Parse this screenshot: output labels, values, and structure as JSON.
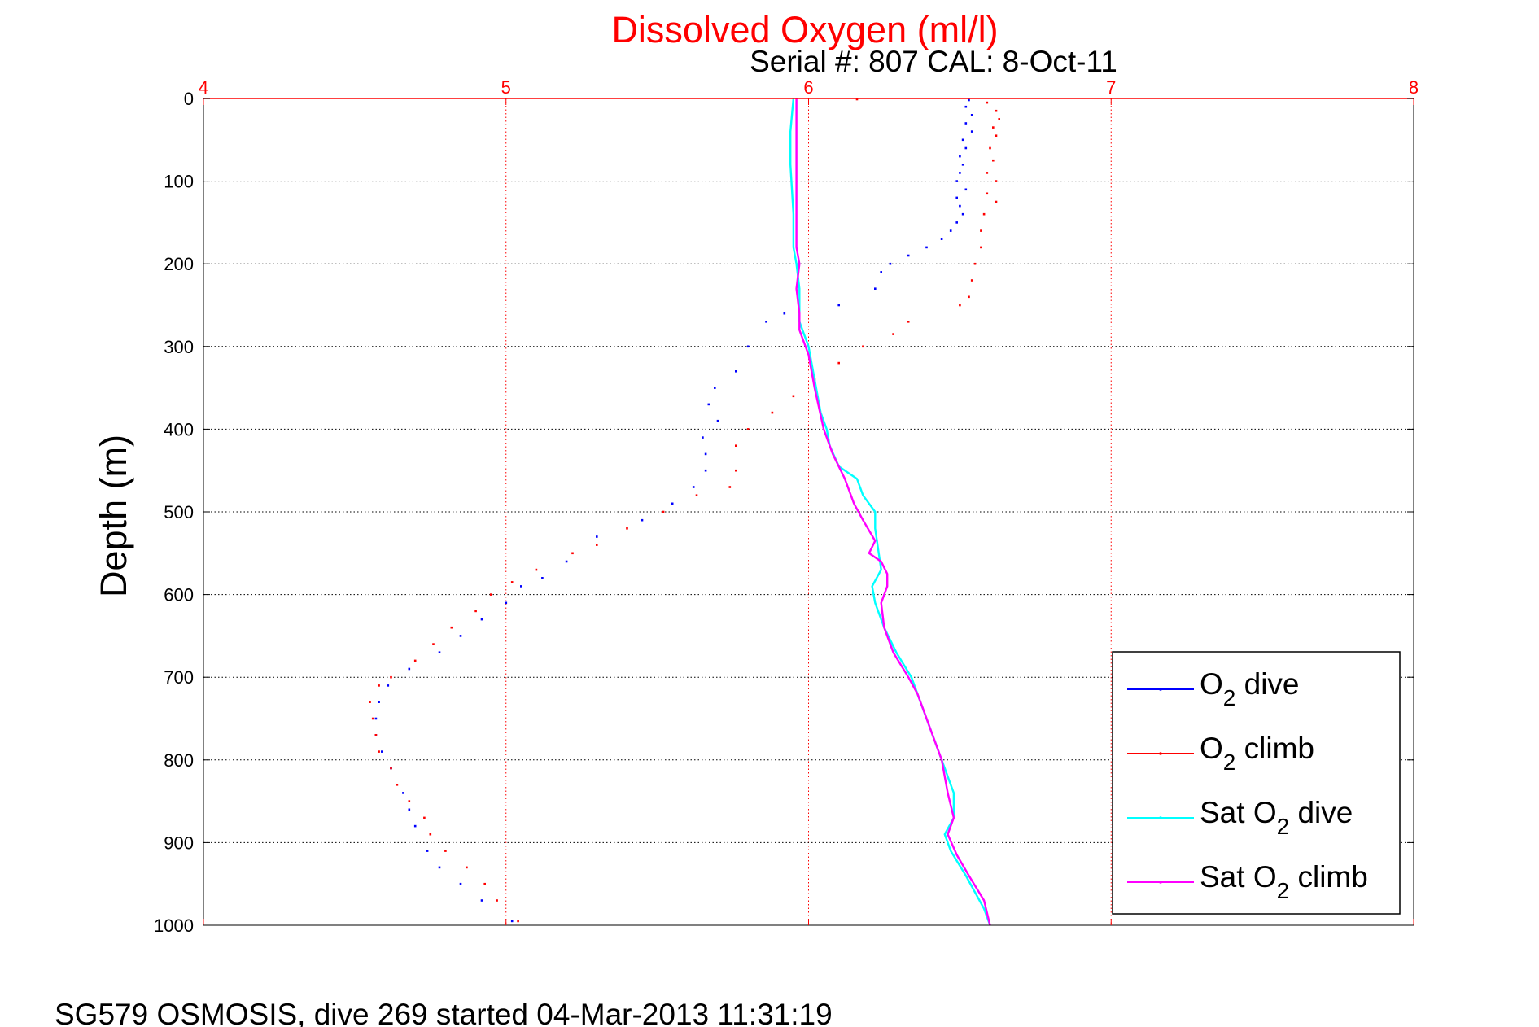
{
  "chart_data": {
    "type": "scatter",
    "title": "Dissolved Oxygen (ml/l)",
    "subtitle": "Serial #: 807  CAL: 8-Oct-11",
    "ylabel": "Depth (m)",
    "footer": "SG579 OSMOSIS, dive 269 started 04-Mar-2013 11:31:19",
    "xlim": [
      4,
      8
    ],
    "ylim": [
      0,
      1000
    ],
    "y_reversed": true,
    "x_axis_position": "top",
    "xticks": [
      "4",
      "5",
      "6",
      "7",
      "8"
    ],
    "yticks": [
      "0",
      "100",
      "200",
      "300",
      "400",
      "500",
      "600",
      "700",
      "800",
      "900",
      "1000"
    ],
    "grid": true,
    "legend_position": "bottom-right",
    "colors": {
      "title": "#ff0000",
      "x_axis": "#ff0000",
      "grid": "#000000",
      "o2_dive": "#0000ff",
      "o2_climb": "#ff0000",
      "sat_dive": "#00ffff",
      "sat_climb": "#ff00ff"
    },
    "series": [
      {
        "name": "O2 dive",
        "label_main": "O",
        "label_sub": "2",
        "label_tail": " dive",
        "style": "dots",
        "color": "#0000ff",
        "points": [
          [
            6.53,
            2
          ],
          [
            6.52,
            10
          ],
          [
            6.54,
            20
          ],
          [
            6.52,
            30
          ],
          [
            6.54,
            40
          ],
          [
            6.51,
            50
          ],
          [
            6.52,
            60
          ],
          [
            6.5,
            70
          ],
          [
            6.51,
            80
          ],
          [
            6.5,
            90
          ],
          [
            6.49,
            100
          ],
          [
            6.52,
            110
          ],
          [
            6.49,
            120
          ],
          [
            6.5,
            130
          ],
          [
            6.51,
            140
          ],
          [
            6.49,
            150
          ],
          [
            6.47,
            160
          ],
          [
            6.44,
            170
          ],
          [
            6.39,
            180
          ],
          [
            6.33,
            190
          ],
          [
            6.27,
            200
          ],
          [
            6.24,
            210
          ],
          [
            6.22,
            230
          ],
          [
            6.1,
            250
          ],
          [
            5.92,
            260
          ],
          [
            5.86,
            270
          ],
          [
            5.8,
            300
          ],
          [
            5.76,
            330
          ],
          [
            5.69,
            350
          ],
          [
            5.67,
            370
          ],
          [
            5.7,
            390
          ],
          [
            5.65,
            410
          ],
          [
            5.66,
            430
          ],
          [
            5.66,
            450
          ],
          [
            5.62,
            470
          ],
          [
            5.55,
            490
          ],
          [
            5.45,
            510
          ],
          [
            5.3,
            530
          ],
          [
            5.2,
            560
          ],
          [
            5.12,
            580
          ],
          [
            5.05,
            590
          ],
          [
            5.0,
            610
          ],
          [
            4.92,
            630
          ],
          [
            4.85,
            650
          ],
          [
            4.78,
            670
          ],
          [
            4.68,
            690
          ],
          [
            4.61,
            710
          ],
          [
            4.58,
            730
          ],
          [
            4.57,
            750
          ],
          [
            4.57,
            770
          ],
          [
            4.59,
            790
          ],
          [
            4.62,
            810
          ],
          [
            4.66,
            840
          ],
          [
            4.68,
            860
          ],
          [
            4.7,
            880
          ],
          [
            4.74,
            910
          ],
          [
            4.78,
            930
          ],
          [
            4.85,
            950
          ],
          [
            4.92,
            970
          ],
          [
            5.02,
            995
          ]
        ]
      },
      {
        "name": "O2 climb",
        "label_main": "O",
        "label_sub": "2",
        "label_tail": " climb",
        "style": "dots",
        "color": "#ff0000",
        "points": [
          [
            6.16,
            1
          ],
          [
            6.59,
            5
          ],
          [
            6.62,
            15
          ],
          [
            6.63,
            25
          ],
          [
            6.61,
            35
          ],
          [
            6.62,
            45
          ],
          [
            6.6,
            60
          ],
          [
            6.61,
            75
          ],
          [
            6.59,
            90
          ],
          [
            6.62,
            100
          ],
          [
            6.59,
            115
          ],
          [
            6.62,
            125
          ],
          [
            6.58,
            140
          ],
          [
            6.57,
            160
          ],
          [
            6.57,
            180
          ],
          [
            6.55,
            200
          ],
          [
            6.54,
            220
          ],
          [
            6.53,
            240
          ],
          [
            6.5,
            250
          ],
          [
            6.33,
            270
          ],
          [
            6.28,
            285
          ],
          [
            6.18,
            300
          ],
          [
            6.1,
            320
          ],
          [
            6.02,
            340
          ],
          [
            5.95,
            360
          ],
          [
            5.88,
            380
          ],
          [
            5.8,
            400
          ],
          [
            5.76,
            420
          ],
          [
            5.76,
            450
          ],
          [
            5.74,
            470
          ],
          [
            5.63,
            480
          ],
          [
            5.52,
            500
          ],
          [
            5.4,
            520
          ],
          [
            5.3,
            540
          ],
          [
            5.22,
            550
          ],
          [
            5.1,
            570
          ],
          [
            5.02,
            585
          ],
          [
            4.95,
            600
          ],
          [
            4.9,
            620
          ],
          [
            4.82,
            640
          ],
          [
            4.76,
            660
          ],
          [
            4.7,
            680
          ],
          [
            4.62,
            700
          ],
          [
            4.58,
            710
          ],
          [
            4.55,
            730
          ],
          [
            4.56,
            750
          ],
          [
            4.57,
            770
          ],
          [
            4.58,
            790
          ],
          [
            4.62,
            810
          ],
          [
            4.64,
            830
          ],
          [
            4.68,
            850
          ],
          [
            4.73,
            870
          ],
          [
            4.75,
            890
          ],
          [
            4.8,
            910
          ],
          [
            4.87,
            930
          ],
          [
            4.93,
            950
          ],
          [
            4.97,
            970
          ],
          [
            5.04,
            995
          ]
        ]
      },
      {
        "name": "Sat O2 dive",
        "label_main": "Sat O",
        "label_sub": "2",
        "label_tail": " dive",
        "style": "line",
        "color": "#00ffff",
        "points": [
          [
            5.95,
            0
          ],
          [
            5.94,
            40
          ],
          [
            5.94,
            80
          ],
          [
            5.95,
            140
          ],
          [
            5.95,
            180
          ],
          [
            5.96,
            200
          ],
          [
            5.97,
            230
          ],
          [
            5.97,
            270
          ],
          [
            6.0,
            300
          ],
          [
            6.02,
            340
          ],
          [
            6.04,
            380
          ],
          [
            6.06,
            400
          ],
          [
            6.07,
            420
          ],
          [
            6.1,
            445
          ],
          [
            6.16,
            460
          ],
          [
            6.18,
            480
          ],
          [
            6.22,
            500
          ],
          [
            6.22,
            520
          ],
          [
            6.23,
            545
          ],
          [
            6.24,
            570
          ],
          [
            6.21,
            590
          ],
          [
            6.22,
            610
          ],
          [
            6.25,
            640
          ],
          [
            6.29,
            670
          ],
          [
            6.34,
            700
          ],
          [
            6.37,
            730
          ],
          [
            6.4,
            760
          ],
          [
            6.44,
            800
          ],
          [
            6.48,
            840
          ],
          [
            6.48,
            870
          ],
          [
            6.45,
            890
          ],
          [
            6.47,
            910
          ],
          [
            6.52,
            940
          ],
          [
            6.58,
            980
          ],
          [
            6.6,
            1000
          ]
        ]
      },
      {
        "name": "Sat O2 climb",
        "label_main": "Sat O",
        "label_sub": "2",
        "label_tail": " climb",
        "style": "line",
        "color": "#ff00ff",
        "points": [
          [
            5.96,
            0
          ],
          [
            5.96,
            40
          ],
          [
            5.96,
            80
          ],
          [
            5.96,
            140
          ],
          [
            5.96,
            180
          ],
          [
            5.97,
            200
          ],
          [
            5.96,
            230
          ],
          [
            5.97,
            260
          ],
          [
            5.97,
            280
          ],
          [
            6.0,
            310
          ],
          [
            6.02,
            350
          ],
          [
            6.05,
            400
          ],
          [
            6.08,
            430
          ],
          [
            6.12,
            460
          ],
          [
            6.15,
            490
          ],
          [
            6.18,
            510
          ],
          [
            6.22,
            535
          ],
          [
            6.2,
            550
          ],
          [
            6.24,
            560
          ],
          [
            6.26,
            575
          ],
          [
            6.26,
            590
          ],
          [
            6.24,
            610
          ],
          [
            6.25,
            640
          ],
          [
            6.28,
            670
          ],
          [
            6.33,
            700
          ],
          [
            6.36,
            720
          ],
          [
            6.38,
            740
          ],
          [
            6.41,
            770
          ],
          [
            6.44,
            800
          ],
          [
            6.46,
            840
          ],
          [
            6.48,
            870
          ],
          [
            6.46,
            890
          ],
          [
            6.49,
            915
          ],
          [
            6.53,
            940
          ],
          [
            6.58,
            970
          ],
          [
            6.6,
            1000
          ]
        ]
      }
    ]
  }
}
